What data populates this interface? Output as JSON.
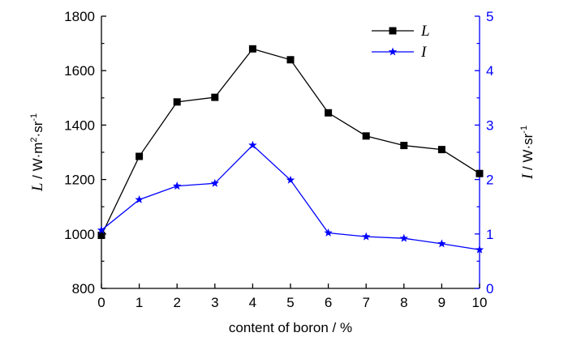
{
  "chart_data": {
    "type": "line",
    "x": [
      0,
      1,
      2,
      3,
      4,
      5,
      6,
      7,
      8,
      9,
      10
    ],
    "xlabel": "content of boron / %",
    "xlim": [
      0,
      10
    ],
    "xticks": [
      "0",
      "1",
      "2",
      "3",
      "4",
      "5",
      "6",
      "7",
      "8",
      "9",
      "10"
    ],
    "left_axis": {
      "label_symbol": "L",
      "label_unit": " / W·m",
      "label_exp1": "2",
      "label_mid": "·sr",
      "label_exp2": "-1",
      "ylim": [
        800,
        1800
      ],
      "ticks": [
        "800",
        "1000",
        "1200",
        "1400",
        "1600",
        "1800"
      ]
    },
    "right_axis": {
      "label_symbol": "I",
      "label_unit": " / W·sr",
      "label_exp": "-1",
      "ylim": [
        0,
        5
      ],
      "ticks": [
        "0",
        "1",
        "2",
        "3",
        "4",
        "5"
      ],
      "color": "#0000ff"
    },
    "series": [
      {
        "name": "L",
        "axis": "left",
        "marker": "square",
        "color": "#000000",
        "values": [
          995,
          1285,
          1485,
          1502,
          1680,
          1640,
          1445,
          1360,
          1325,
          1310,
          1222
        ]
      },
      {
        "name": "I",
        "axis": "right",
        "marker": "star",
        "color": "#0000ff",
        "values": [
          1.07,
          1.63,
          1.88,
          1.93,
          2.63,
          1.99,
          1.02,
          0.95,
          0.92,
          0.82,
          0.71
        ]
      }
    ],
    "legend_position": "top-right",
    "grid": false
  }
}
